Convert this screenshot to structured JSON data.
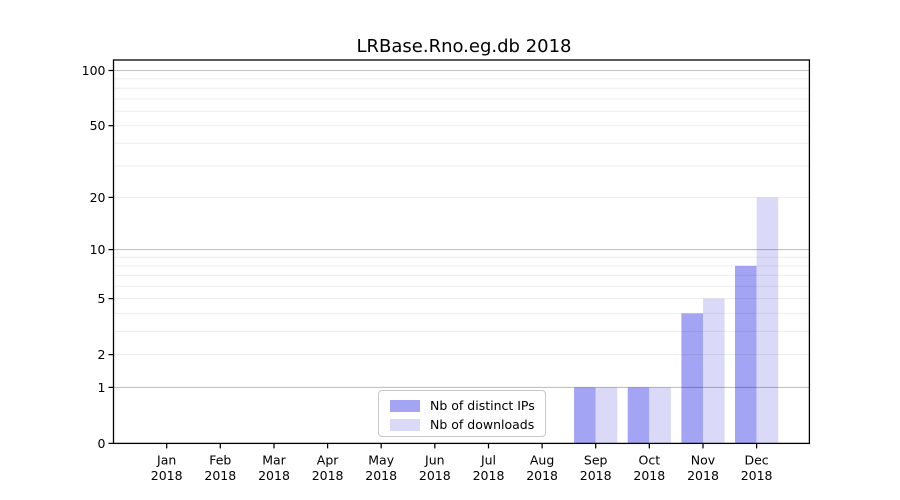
{
  "title": "LRBase.Rno.eg.db 2018",
  "chart_data": {
    "type": "bar",
    "title": "LRBase.Rno.eg.db 2018",
    "categories": [
      "Jan",
      "Feb",
      "Mar",
      "Apr",
      "May",
      "Jun",
      "Jul",
      "Aug",
      "Sep",
      "Oct",
      "Nov",
      "Dec"
    ],
    "category_year": "2018",
    "series": [
      {
        "name": "Nb of distinct IPs",
        "color": "#a4a4f4",
        "values": [
          0,
          0,
          0,
          0,
          0,
          0,
          0,
          0,
          1,
          1,
          4,
          8
        ]
      },
      {
        "name": "Nb of downloads",
        "color": "#dadaf8",
        "values": [
          0,
          0,
          0,
          0,
          0,
          0,
          0,
          0,
          1,
          1,
          5,
          20
        ]
      }
    ],
    "yscale": "log1p",
    "ylim": [
      0,
      114
    ],
    "y_tick_values": [
      0,
      1,
      2,
      5,
      10,
      20,
      50,
      100
    ],
    "y_tick_labels": [
      "0",
      "1",
      "2",
      "5",
      "10",
      "20",
      "50",
      "100"
    ],
    "major_gridlines": [
      1,
      10,
      100
    ],
    "minor_gridlines": [
      2,
      3,
      4,
      5,
      6,
      7,
      8,
      9,
      20,
      30,
      40,
      50,
      60,
      70,
      80,
      90
    ],
    "grid": "on",
    "legend_position": "lower center",
    "xlabel": "",
    "ylabel": ""
  }
}
